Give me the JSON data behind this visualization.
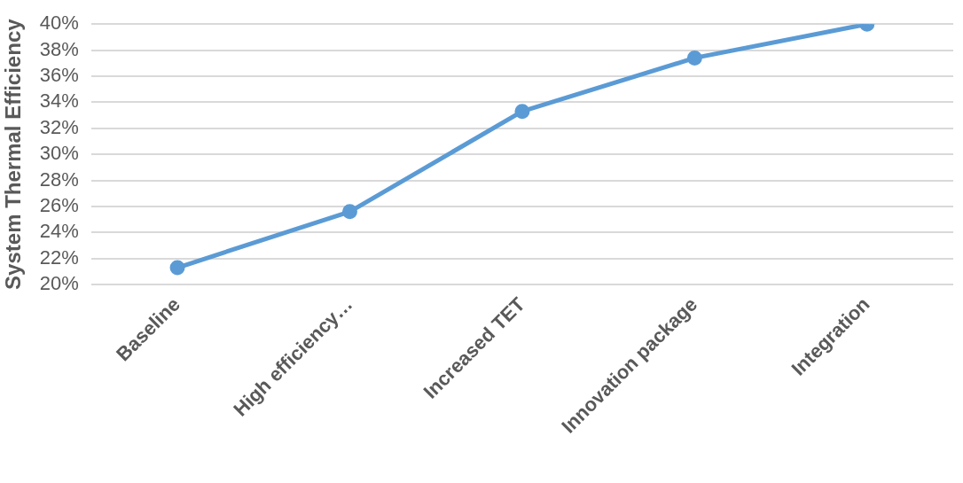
{
  "chart_data": {
    "type": "line",
    "ylabel": "System Thermal Efficiency",
    "categories": [
      "Baseline",
      "High efficiency…",
      "Increased TET",
      "Innovation package",
      "Integration"
    ],
    "series": [
      {
        "color": "#5b9bd5",
        "values": [
          21.3,
          25.6,
          33.3,
          37.4,
          40.0
        ]
      }
    ],
    "ylim": [
      20,
      40
    ],
    "yticks": [
      {
        "value": 20,
        "label": "20%"
      },
      {
        "value": 22,
        "label": "22%"
      },
      {
        "value": 24,
        "label": "24%"
      },
      {
        "value": 26,
        "label": "26%"
      },
      {
        "value": 28,
        "label": "28%"
      },
      {
        "value": 30,
        "label": "30%"
      },
      {
        "value": 32,
        "label": "32%"
      },
      {
        "value": 34,
        "label": "34%"
      },
      {
        "value": 36,
        "label": "36%"
      },
      {
        "value": 38,
        "label": "38%"
      },
      {
        "value": 40,
        "label": "40%"
      }
    ],
    "grid": "y",
    "legend": false,
    "marker": "circle",
    "line_style": "solid"
  }
}
